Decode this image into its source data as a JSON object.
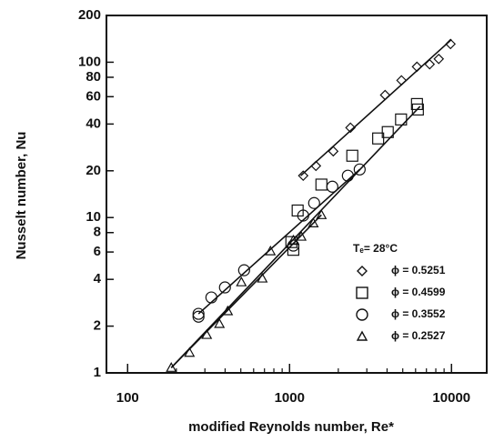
{
  "chart_data": {
    "type": "scatter",
    "x_label": "modified Reynolds number, Re*",
    "y_label": "Nusselt number, Nu",
    "legend_title": "Tₑ= 28°C",
    "log_x": true,
    "log_y": true,
    "xlim": [
      74,
      16500
    ],
    "ylim": [
      1,
      200
    ],
    "xticks": [
      100,
      1000,
      10000
    ],
    "xticks_minor": [
      200,
      300,
      400,
      500,
      600,
      700,
      800,
      900,
      2000,
      3000,
      4000,
      5000,
      6000,
      7000,
      8000,
      9000
    ],
    "yticks": [
      1,
      2,
      4,
      6,
      8,
      10,
      20,
      40,
      60,
      80,
      100,
      200
    ],
    "series": [
      {
        "name": "ϕ = 0.5251",
        "marker": "diamond",
        "color": "#111111",
        "x": [
          1214,
          1455,
          1862,
          2377,
          3890,
          4910,
          6120,
          7330,
          8340,
          9860
        ],
        "values": [
          18.6,
          21.5,
          26.7,
          37.9,
          61.5,
          76.4,
          93.5,
          97,
          105,
          131
        ]
      },
      {
        "name": "ϕ = 0.4599",
        "marker": "square",
        "color": "#111111",
        "x": [
          1026,
          1055,
          1122,
          1573,
          2440,
          3524,
          4040,
          4880,
          6120,
          6200
        ],
        "values": [
          6.95,
          6.2,
          11.1,
          16.3,
          25,
          32.3,
          35.5,
          42.8,
          53.8,
          49.6
        ]
      },
      {
        "name": "ϕ = 0.3552",
        "marker": "circle",
        "color": "#111111",
        "x": [
          274,
          274,
          329,
          399,
          524,
          1055,
          1214,
          1418,
          1838,
          2290,
          2710
        ],
        "values": [
          2.4,
          2.3,
          3.06,
          3.55,
          4.58,
          6.6,
          10.3,
          12.4,
          15.8,
          18.6,
          20.4
        ]
      },
      {
        "name": "ϕ = 0.2527",
        "marker": "triangle",
        "color": "#111111",
        "x": [
          186,
          241,
          308,
          369,
          415,
          504,
          679,
          762,
          1055,
          1180,
          1402,
          1573
        ],
        "values": [
          1.08,
          1.35,
          1.76,
          2.07,
          2.5,
          3.84,
          4.06,
          6.08,
          7.15,
          7.55,
          9.2,
          10.4
        ]
      }
    ],
    "fit_lines": [
      {
        "x": [
          1172,
          10000
        ],
        "values": [
          18.6,
          140
        ]
      },
      {
        "x": [
          186,
          6400
        ],
        "values": [
          1.08,
          52
        ]
      },
      {
        "x": [
          274,
          2710
        ],
        "values": [
          2.4,
          20.4
        ]
      },
      {
        "x": [
          186,
          1573
        ],
        "values": [
          1.08,
          10.4
        ]
      }
    ]
  }
}
